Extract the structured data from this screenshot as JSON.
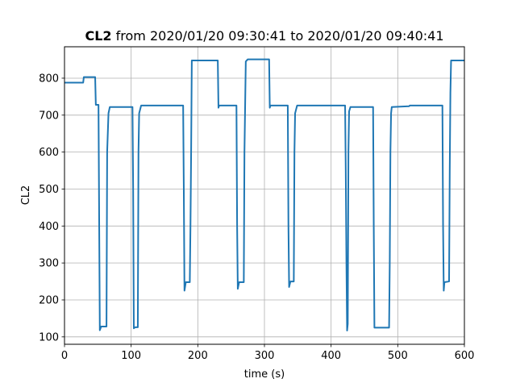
{
  "chart_data": {
    "type": "line",
    "title_bold": "CL2",
    "title_rest": "from 2020/01/20 09:30:41 to 2020/01/20 09:40:41",
    "xlabel": "time (s)",
    "ylabel": "CL2",
    "xlim": [
      0,
      600
    ],
    "ylim": [
      80,
      885
    ],
    "xticks": [
      0,
      100,
      200,
      300,
      400,
      500,
      600
    ],
    "yticks": [
      100,
      200,
      300,
      400,
      500,
      600,
      700,
      800
    ],
    "grid": true,
    "line_color": "#1f77b4",
    "series": [
      {
        "x": [
          0,
          28,
          29,
          46,
          47,
          51,
          52,
          53,
          55,
          63,
          64,
          66,
          68,
          102,
          103,
          104,
          106,
          110,
          111,
          112,
          115,
          178,
          179,
          180,
          182,
          188,
          189,
          190,
          191,
          230,
          231,
          232,
          258,
          259,
          260,
          262,
          269,
          270,
          272,
          275,
          307,
          308,
          309,
          311,
          335,
          336,
          337,
          339,
          344,
          345,
          346,
          349,
          421,
          422,
          423,
          424,
          425,
          426,
          427,
          429,
          463,
          464,
          465,
          487,
          488,
          489,
          490,
          491,
          517,
          518,
          567,
          568,
          569,
          570,
          577,
          578,
          579,
          580,
          600
        ],
        "y": [
          788,
          788,
          803,
          803,
          728,
          728,
          420,
          118,
          128,
          128,
          600,
          705,
          722,
          722,
          500,
          123,
          126,
          126,
          600,
          705,
          726,
          726,
          500,
          225,
          248,
          248,
          400,
          600,
          848,
          848,
          720,
          726,
          726,
          400,
          230,
          248,
          248,
          600,
          845,
          851,
          851,
          720,
          726,
          726,
          726,
          400,
          235,
          250,
          250,
          600,
          705,
          726,
          726,
          550,
          300,
          117,
          135,
          600,
          710,
          722,
          722,
          400,
          125,
          125,
          300,
          600,
          705,
          722,
          724,
          726,
          726,
          400,
          225,
          248,
          250,
          550,
          760,
          848,
          848
        ]
      }
    ]
  }
}
